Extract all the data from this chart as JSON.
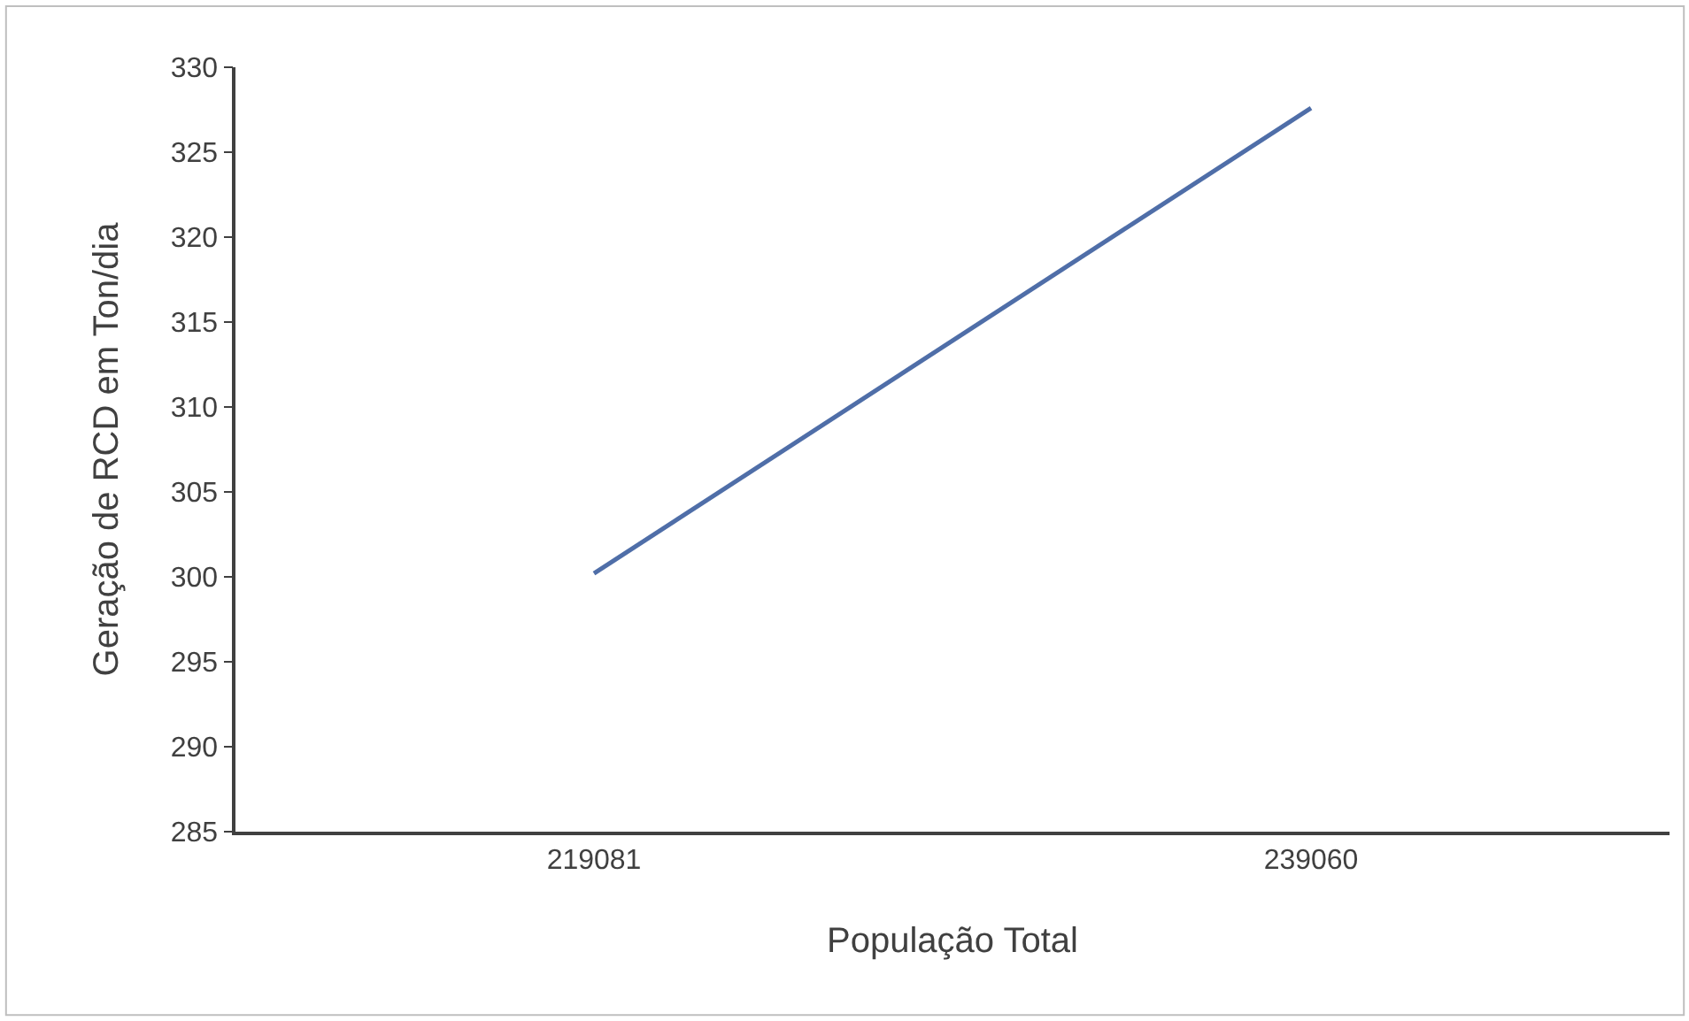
{
  "chart_data": {
    "type": "line",
    "xlabel": "População Total",
    "ylabel": "Geração de RCD em Ton/dia",
    "categories": [
      "219081",
      "239060"
    ],
    "series": [
      {
        "color": "#4f6ea8",
        "values": [
          300.2,
          327.6
        ]
      }
    ],
    "ylim": [
      285,
      330
    ],
    "yticks": [
      285,
      290,
      295,
      300,
      305,
      310,
      315,
      320,
      325,
      330
    ],
    "marker": "none",
    "line_style": "solid"
  }
}
